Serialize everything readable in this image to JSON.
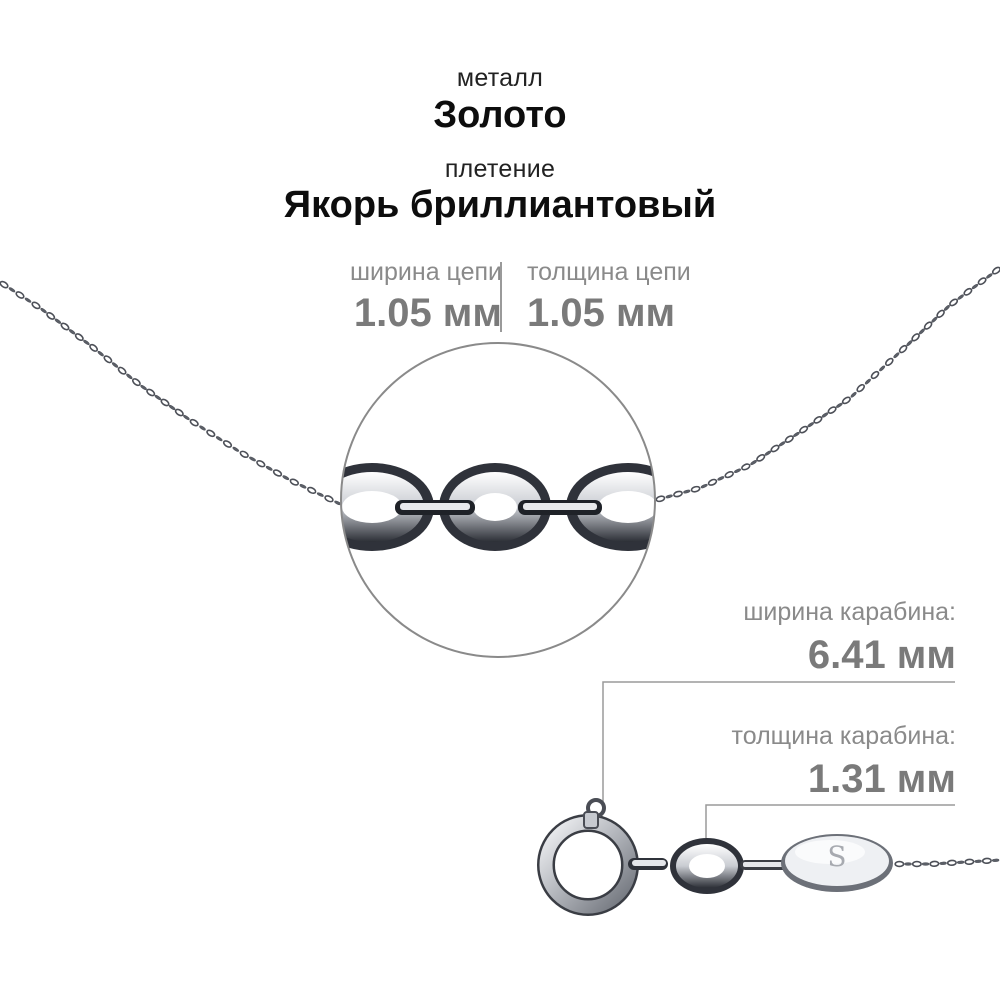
{
  "metal": {
    "label": "металл",
    "value": "Золото"
  },
  "weave": {
    "label": "плетение",
    "value": "Якорь бриллиантовый"
  },
  "chain_width": {
    "label": "ширина цепи",
    "value": "1.05 мм"
  },
  "chain_thickness": {
    "label": "толщина цепи",
    "value": "1.05 мм"
  },
  "clasp_width": {
    "label": "ширина карабина:",
    "value": "6.41 мм"
  },
  "clasp_thickness": {
    "label": "толщина карабина:",
    "value": "1.31 мм"
  },
  "tag_letter": "S",
  "colors": {
    "text": "#111111",
    "muted": "#8a8a8a",
    "metal": "#b9bcc2",
    "metal_dark": "#3a3d44"
  }
}
